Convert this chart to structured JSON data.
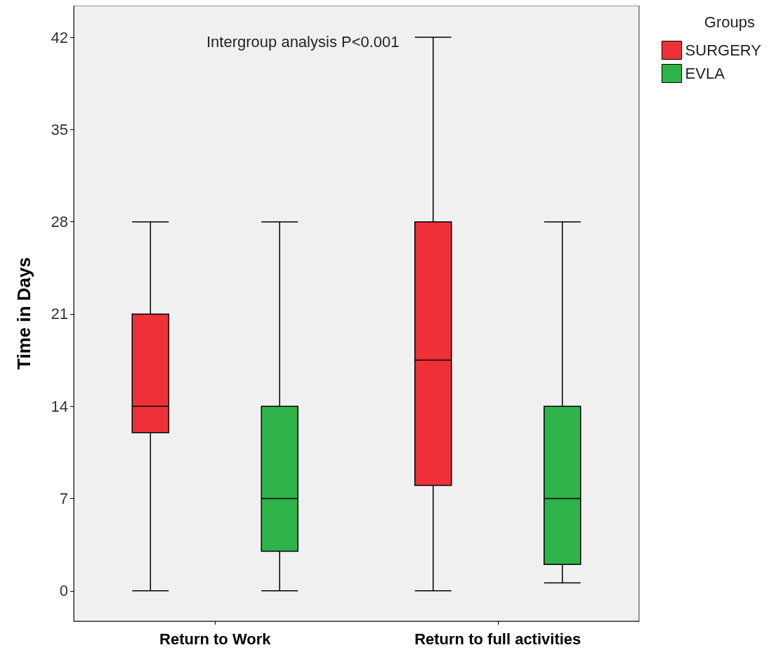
{
  "chart_data": {
    "type": "box",
    "ylabel": "Time in Days",
    "legend_title": "Groups",
    "categories": [
      "Return to Work",
      "Return to full activities"
    ],
    "series": [
      {
        "name": "SURGERY",
        "color": "#ef3038",
        "boxes": [
          {
            "low": 0,
            "q1": 12,
            "median": 14,
            "q3": 21,
            "high": 28
          },
          {
            "low": 0,
            "q1": 8,
            "median": 17.5,
            "q3": 28,
            "high": 42
          }
        ]
      },
      {
        "name": "EVLA",
        "color": "#2db34a",
        "boxes": [
          {
            "low": 0,
            "q1": 3,
            "median": 7,
            "q3": 14,
            "high": 28
          },
          {
            "low": 0.6,
            "q1": 2,
            "median": 7,
            "q3": 14,
            "high": 28
          }
        ]
      }
    ],
    "ylim": [
      -2.3,
      44.4
    ],
    "yticks": [
      0,
      7,
      14,
      21,
      28,
      35,
      42
    ],
    "grid": false,
    "legend": "top right",
    "annotations": [
      "Intergroup analysis P<0.001"
    ]
  }
}
